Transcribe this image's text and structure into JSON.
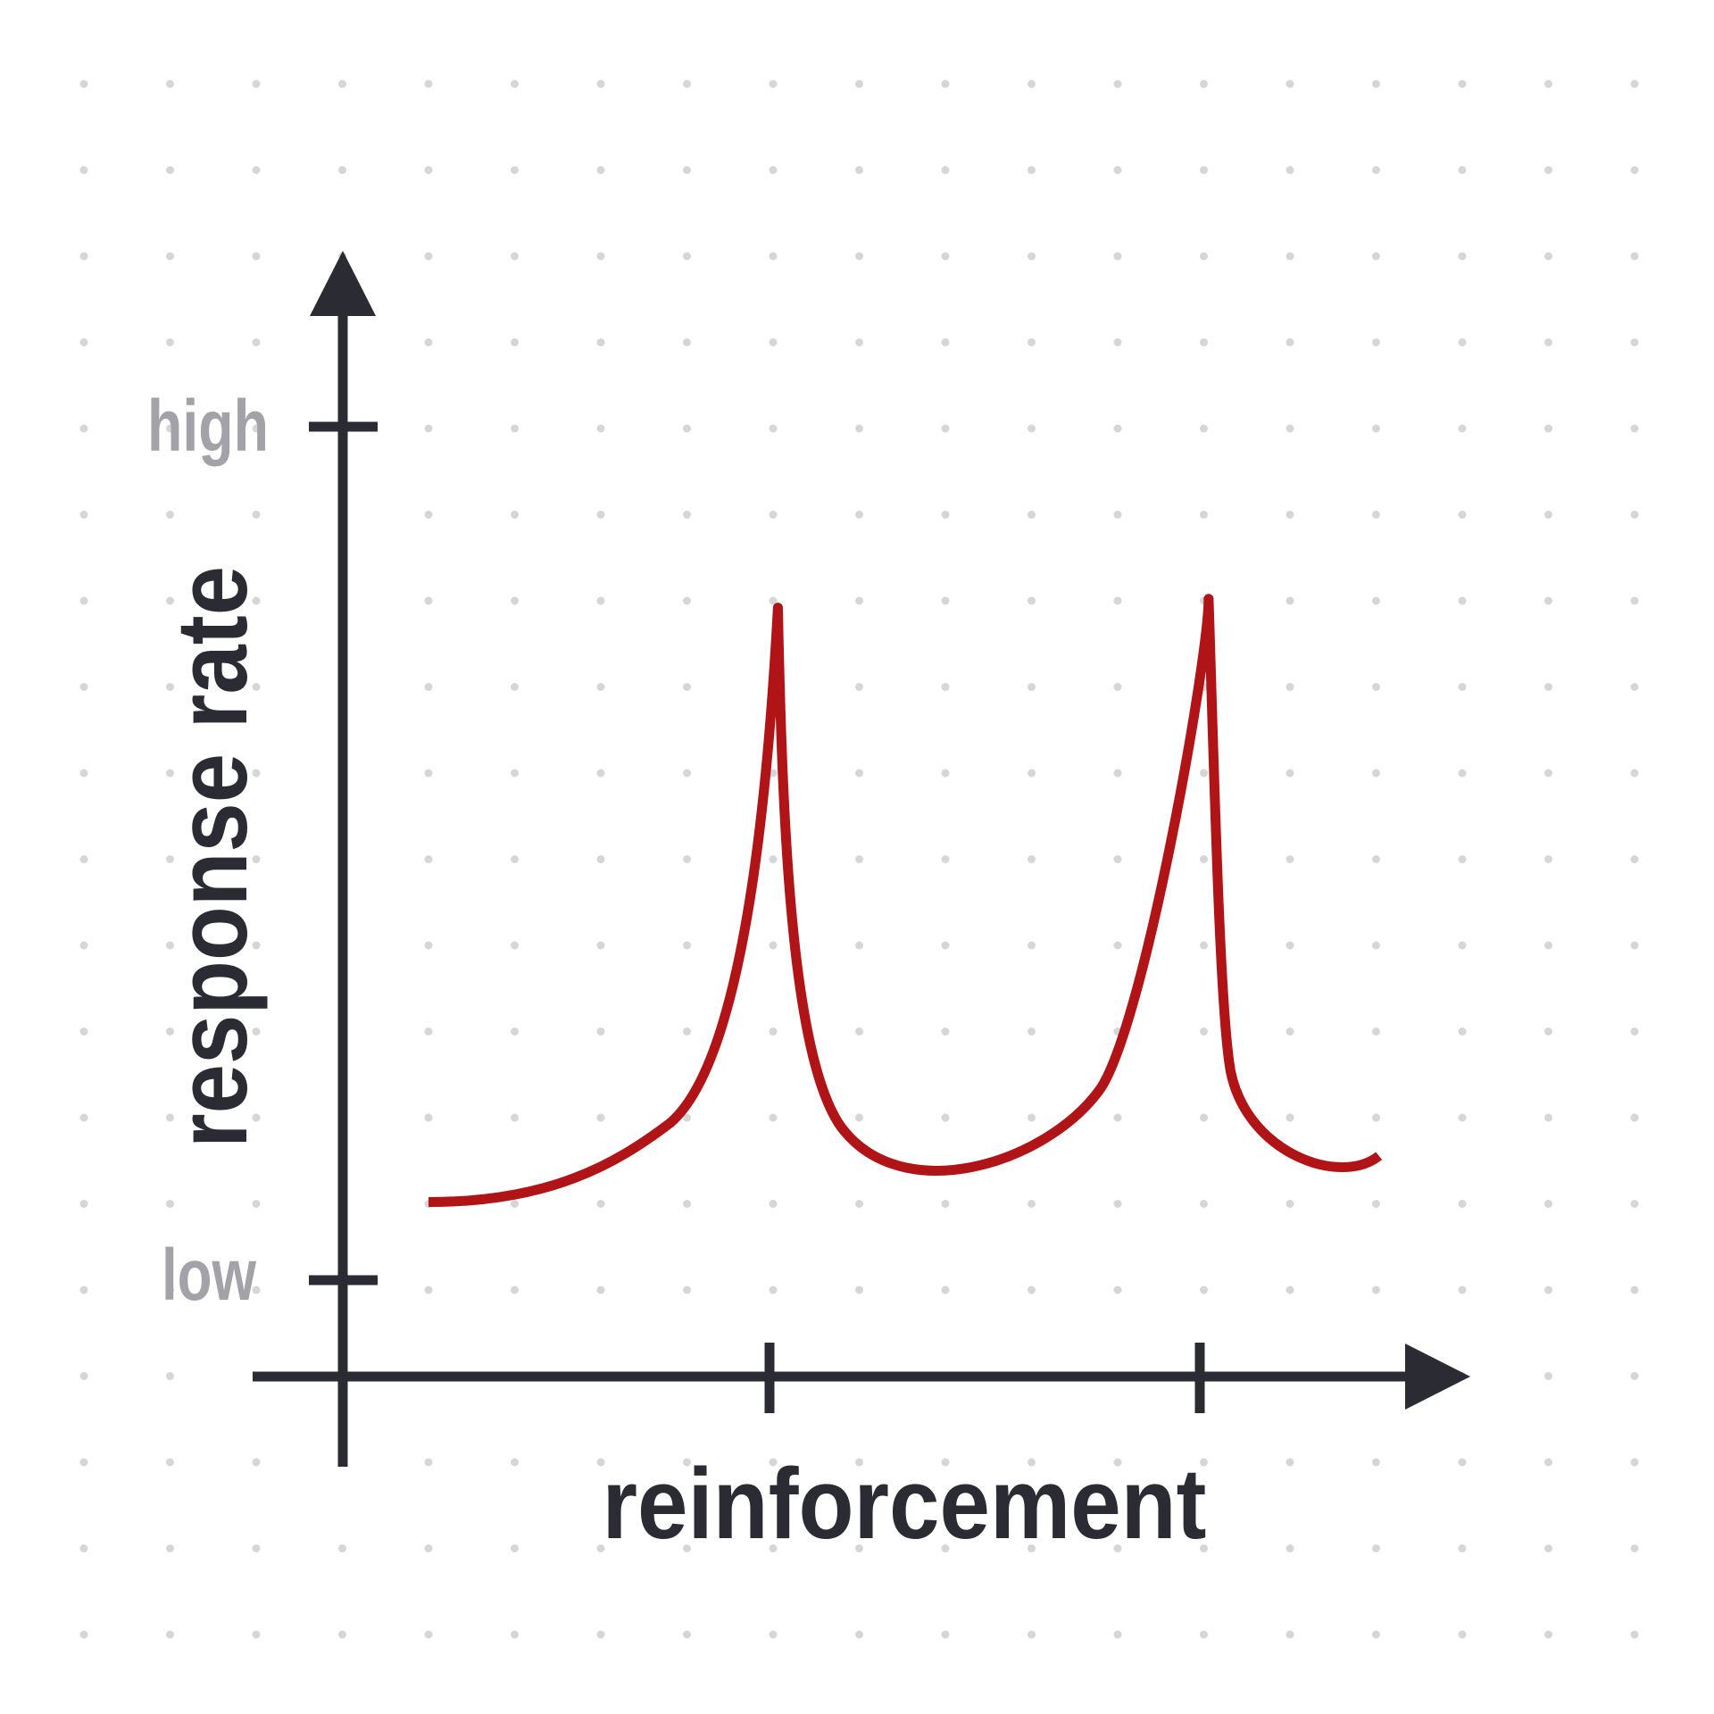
{
  "y_axis": {
    "label": "response rate",
    "ticks": {
      "high": "high",
      "low": "low"
    }
  },
  "x_axis": {
    "label": "reinforcement"
  }
}
